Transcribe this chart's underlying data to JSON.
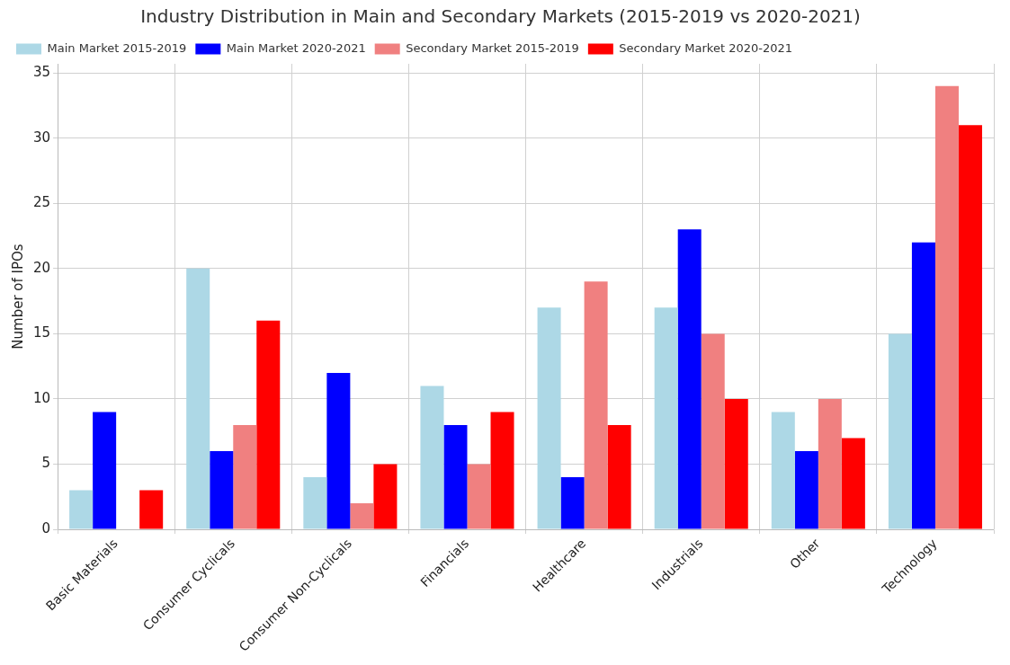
{
  "chart_data": {
    "type": "bar",
    "title": "Industry Distribution in Main and Secondary Markets (2015-2019 vs 2020-2021)",
    "ylabel": "Number of IPOs",
    "categories": [
      "Basic Materials",
      "Consumer Cyclicals",
      "Consumer Non-Cyclicals",
      "Financials",
      "Healthcare",
      "Industrials",
      "Other",
      "Technology"
    ],
    "series": [
      {
        "name": "Main Market 2015-2019",
        "color": "#add8e6",
        "values": [
          3,
          20,
          4,
          11,
          17,
          17,
          9,
          15
        ]
      },
      {
        "name": "Main Market 2020-2021",
        "color": "#0000ff",
        "values": [
          9,
          6,
          12,
          8,
          4,
          23,
          6,
          22
        ]
      },
      {
        "name": "Secondary Market 2015-2019",
        "color": "#f08080",
        "values": [
          0,
          8,
          2,
          5,
          19,
          15,
          10,
          34
        ]
      },
      {
        "name": "Secondary Market 2020-2021",
        "color": "#ff0000",
        "values": [
          3,
          16,
          5,
          9,
          8,
          10,
          7,
          31
        ]
      }
    ],
    "ylim": [
      0,
      35.7
    ],
    "yticks": [
      0,
      5,
      10,
      15,
      20,
      25,
      30,
      35
    ],
    "grid": true,
    "legend": "top left"
  }
}
